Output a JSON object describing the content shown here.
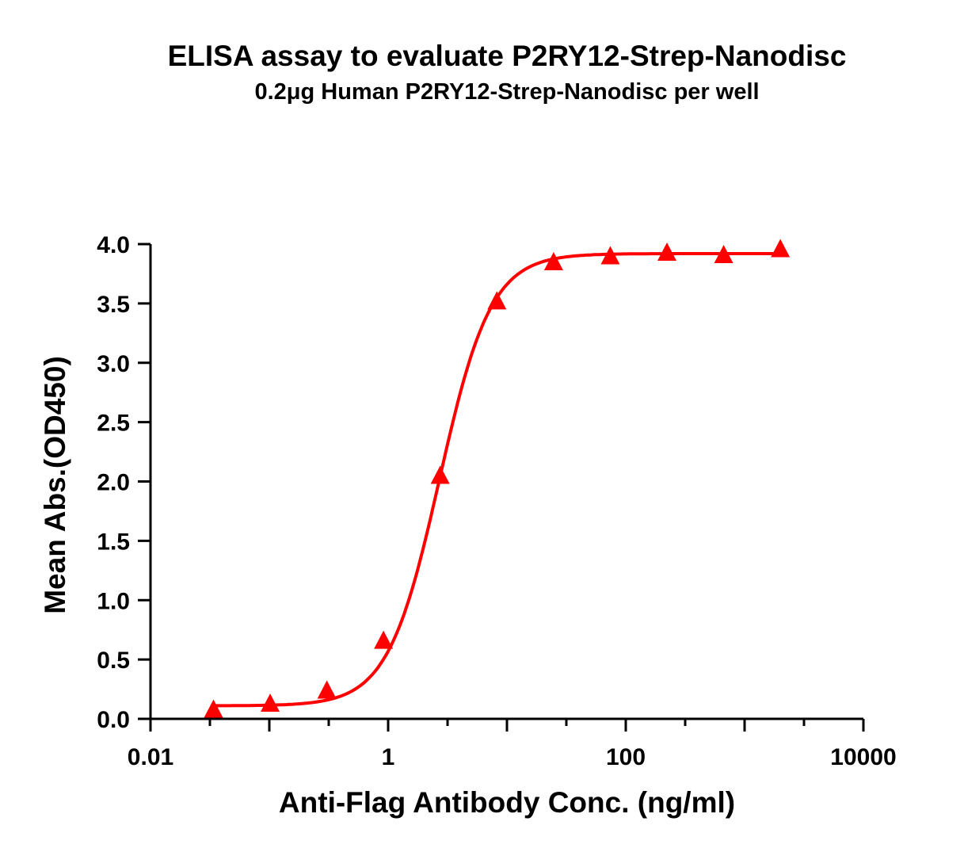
{
  "chart_data": {
    "type": "scatter",
    "title": "ELISA assay to evaluate P2RY12-Strep-Nanodisc",
    "subtitle": "0.2μg Human P2RY12-Strep-Nanodisc per well",
    "xlabel": "Anti-Flag Antibody Conc. (ng/ml)",
    "ylabel": "Mean Abs.(OD450)",
    "xscale": "log",
    "xlim": [
      0.01,
      10000
    ],
    "ylim": [
      0,
      4.0
    ],
    "xticks": [
      0.01,
      1,
      100,
      10000
    ],
    "xtick_labels": [
      "0.01",
      "1",
      "100",
      "10000"
    ],
    "yticks": [
      0.0,
      0.5,
      1.0,
      1.5,
      2.0,
      2.5,
      3.0,
      3.5,
      4.0
    ],
    "ytick_labels": [
      "0.0",
      "0.5",
      "1.0",
      "1.5",
      "2.0",
      "2.5",
      "3.0",
      "3.5",
      "4.0"
    ],
    "grid": false,
    "marker": "triangle",
    "color": "#ff0000",
    "x": [
      0.0339,
      0.1016,
      0.305,
      0.914,
      2.74,
      8.23,
      24.7,
      74.1,
      222.2,
      666.7,
      2000
    ],
    "y": [
      0.07,
      0.12,
      0.23,
      0.65,
      2.04,
      3.51,
      3.84,
      3.89,
      3.92,
      3.9,
      3.95
    ],
    "fit": {
      "model": "4PL",
      "bottom": 0.11,
      "top": 3.92,
      "ec50": 2.7,
      "hill": 2.0
    }
  }
}
